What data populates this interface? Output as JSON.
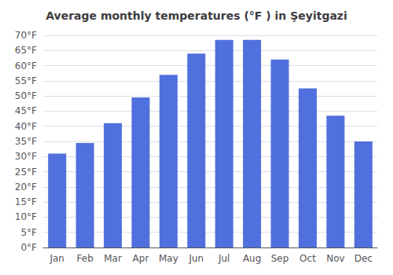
{
  "chart_data": {
    "type": "bar",
    "title": "Average monthly temperatures (°F ) in Şeyitgazi",
    "categories": [
      "Jan",
      "Feb",
      "Mar",
      "Apr",
      "May",
      "Jun",
      "Jul",
      "Aug",
      "Sep",
      "Oct",
      "Nov",
      "Dec"
    ],
    "values": [
      31,
      34.5,
      41,
      49.5,
      57,
      64,
      68.5,
      68.5,
      62,
      52.5,
      43.5,
      35
    ],
    "ylim": [
      0,
      70
    ],
    "yticks": [
      {
        "value": 0,
        "label": "0°F"
      },
      {
        "value": 5,
        "label": "5°F"
      },
      {
        "value": 10,
        "label": "10°F"
      },
      {
        "value": 15,
        "label": "15°F"
      },
      {
        "value": 20,
        "label": "20°F"
      },
      {
        "value": 25,
        "label": "25°F"
      },
      {
        "value": 30,
        "label": "30°F"
      },
      {
        "value": 35,
        "label": "35°F"
      },
      {
        "value": 40,
        "label": "40°F"
      },
      {
        "value": 45,
        "label": "45°F"
      },
      {
        "value": 50,
        "label": "50°F"
      },
      {
        "value": 55,
        "label": "55°F"
      },
      {
        "value": 60,
        "label": "60°F"
      },
      {
        "value": 65,
        "label": "65°F"
      },
      {
        "value": 70,
        "label": "70°F"
      }
    ],
    "grid": true
  }
}
